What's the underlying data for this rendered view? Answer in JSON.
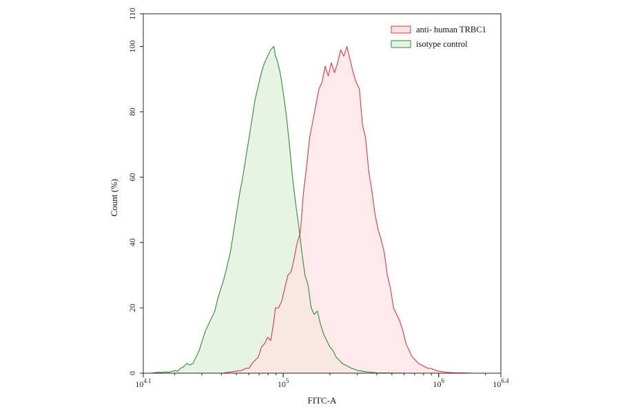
{
  "chart_data": {
    "type": "area",
    "title": "",
    "xlabel": "FITC-A",
    "ylabel": "Count  (%)",
    "x_scale": "log10",
    "xlim": [
      12589,
      2511886
    ],
    "ylim": [
      0,
      110
    ],
    "y_ticks": [
      0,
      20,
      40,
      60,
      80,
      100,
      110
    ],
    "x_ticks": [
      {
        "value": 12589,
        "base": "10",
        "exp": "4.1"
      },
      {
        "value": 100000,
        "base": "10",
        "exp": "5"
      },
      {
        "value": 1000000,
        "base": "10",
        "exp": "6"
      },
      {
        "value": 2511886,
        "base": "10",
        "exp": "6.4"
      }
    ],
    "legend_position": "top-right",
    "series": [
      {
        "name": "anti- human TRBC1",
        "line_color": "#d93a3f",
        "fill_color": "#fde3e3",
        "x": [
          26300,
          40700,
          47860,
          53700,
          57540,
          60260,
          63100,
          66070,
          69180,
          72440,
          75860,
          79430,
          83180,
          87100,
          89130,
          93330,
          97720,
          102330,
          107150,
          112200,
          117490,
          123030,
          128820,
          134900,
          141250,
          147910,
          154880,
          162180,
          169820,
          177830,
          186210,
          194980,
          204170,
          213800,
          223870,
          234420,
          245470,
          257040,
          269150,
          281840,
          295120,
          309030,
          323590,
          338840,
          354810,
          371540,
          389050,
          407380,
          426580,
          446680,
          467740,
          489780,
          512860,
          537030,
          562340,
          588840,
          616600,
          645650,
          676080,
          707950,
          741310,
          776250,
          812830,
          851140,
          891250,
          977240,
          1071520,
          1174900,
          1288250,
          1412540,
          1548820,
          1698240,
          1862090,
          2041740,
          2238720,
          2511886
        ],
        "values": [
          0,
          0,
          0.5,
          0.8,
          1.5,
          1.5,
          3,
          4,
          5,
          8,
          9,
          11,
          10,
          16,
          20,
          20,
          22,
          26,
          30,
          31,
          35,
          40,
          43,
          55,
          63,
          72,
          77,
          82,
          87,
          89,
          94,
          91,
          95,
          92,
          95,
          99,
          97,
          100,
          96,
          92,
          89,
          87,
          76,
          72,
          62,
          56,
          49,
          44,
          41,
          37,
          30,
          26,
          20,
          18,
          16,
          13,
          9,
          7,
          5,
          4,
          3,
          2.5,
          2,
          1.5,
          1.5,
          0.7,
          0.4,
          0.2,
          0.1,
          0.1,
          0.05,
          0,
          0,
          0,
          0,
          0
        ]
      },
      {
        "name": "isotype control",
        "line_color": "#2e8b2e",
        "fill_color": "#e4f3e1",
        "x": [
          12589,
          14130,
          15140,
          15850,
          16600,
          17380,
          18200,
          19050,
          19950,
          20890,
          21880,
          22910,
          23990,
          25120,
          26300,
          27540,
          28840,
          30200,
          31620,
          33110,
          34670,
          36310,
          38020,
          39810,
          41690,
          43650,
          45710,
          47860,
          50120,
          52480,
          54950,
          57540,
          60260,
          63100,
          66070,
          69180,
          72440,
          75860,
          79430,
          83180,
          87100,
          89130,
          91200,
          95500,
          100000,
          104710,
          109650,
          114820,
          120230,
          125890,
          131830,
          138040,
          144540,
          151360,
          158490,
          165960,
          173780,
          181970,
          190550,
          199530,
          208930,
          218780,
          229090,
          239880,
          251190,
          263030,
          275420,
          288400,
          301990,
          316230,
          331130,
          346740,
          363080,
          380190,
          398110,
          501190,
          630960,
          794330,
          1000000,
          2511886
        ],
        "values": [
          0,
          0,
          0.2,
          0.3,
          0.2,
          0.4,
          0.3,
          0.5,
          0.8,
          0.6,
          1.5,
          2,
          3,
          2.5,
          3,
          5,
          7,
          10,
          13,
          15,
          17,
          19,
          23,
          26,
          29,
          33,
          37,
          43,
          49,
          55,
          60,
          66,
          72,
          78,
          84,
          88,
          92,
          95,
          97,
          99,
          100,
          97,
          96,
          92,
          86,
          79,
          70,
          60,
          52,
          45,
          37,
          30,
          27,
          20,
          18,
          19,
          15,
          12,
          10,
          8,
          7,
          5,
          4,
          3,
          2.5,
          2,
          1.5,
          1.2,
          0.8,
          0.7,
          0.5,
          0.4,
          0.3,
          0.2,
          0.1,
          0.05,
          0,
          0,
          0,
          0
        ]
      }
    ]
  }
}
